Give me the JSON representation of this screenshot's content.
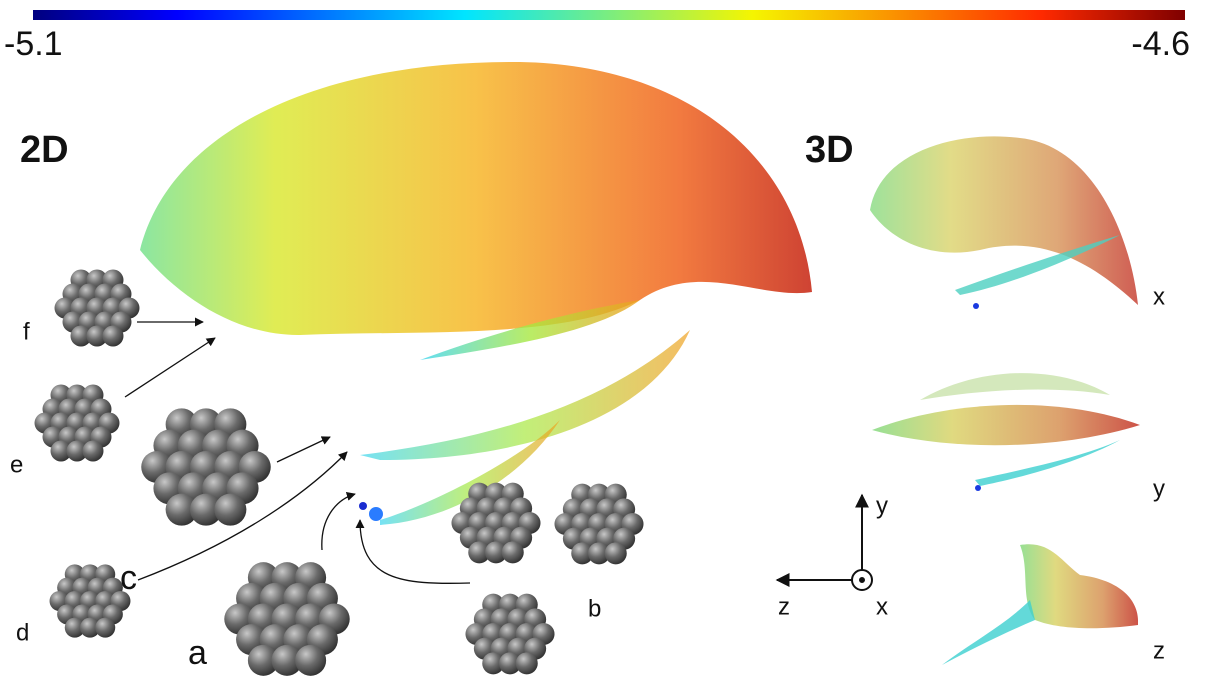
{
  "colorbar": {
    "min": -5.1,
    "max": -4.6
  },
  "panels": [
    "2D",
    "3D"
  ],
  "clusters": [
    "a",
    "b",
    "c",
    "d",
    "e",
    "f"
  ],
  "views": [
    "x",
    "y",
    "z"
  ],
  "axes": [
    "z",
    "y",
    "x"
  ]
}
